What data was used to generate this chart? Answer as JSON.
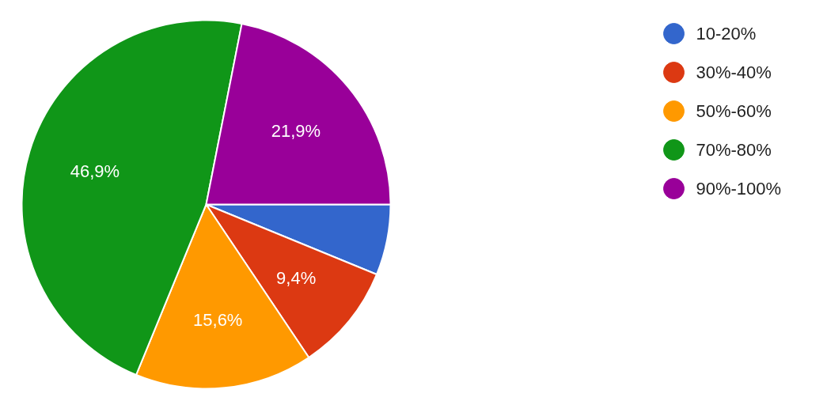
{
  "chart_data": {
    "type": "pie",
    "categories": [
      "10-20%",
      "30%-40%",
      "50%-60%",
      "70%-80%",
      "90%-100%"
    ],
    "values": [
      6.2,
      9.4,
      15.6,
      46.9,
      21.9
    ],
    "value_labels": [
      null,
      "9,4%",
      "15,6%",
      "46,9%",
      "21,9%"
    ],
    "colors": [
      "#3366cc",
      "#dc3912",
      "#ff9900",
      "#109618",
      "#990099"
    ],
    "legend": "right"
  }
}
